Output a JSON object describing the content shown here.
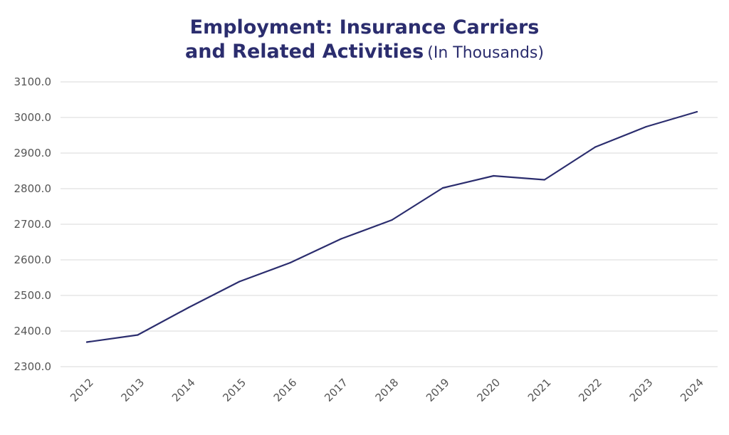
{
  "chart_data": {
    "type": "line",
    "title_line1": "Employment: Insurance Carriers",
    "title_line2_bold": "and Related Activities",
    "title_line2_sub": "(In Thousands)",
    "xlabel": "",
    "ylabel": "",
    "x": [
      "2012",
      "2013",
      "2014",
      "2015",
      "2016",
      "2017",
      "2018",
      "2019",
      "2020",
      "2021",
      "2022",
      "2023",
      "2024"
    ],
    "series": [
      {
        "values": [
          2369.0,
          2389.0,
          2466.0,
          2539.0,
          2592.0,
          2659.0,
          2712.0,
          2802.0,
          2836.0,
          2825.0,
          2917.0,
          2974.0,
          3016.0
        ],
        "color": "#2b2d6e"
      }
    ],
    "ylim": [
      2300.0,
      3100.0
    ],
    "yticks": [
      "3100.0",
      "3000.0",
      "2900.0",
      "2800.0",
      "2700.0",
      "2600.0",
      "2500.0",
      "2400.0",
      "2300.0"
    ],
    "grid": true,
    "legend": "none"
  }
}
